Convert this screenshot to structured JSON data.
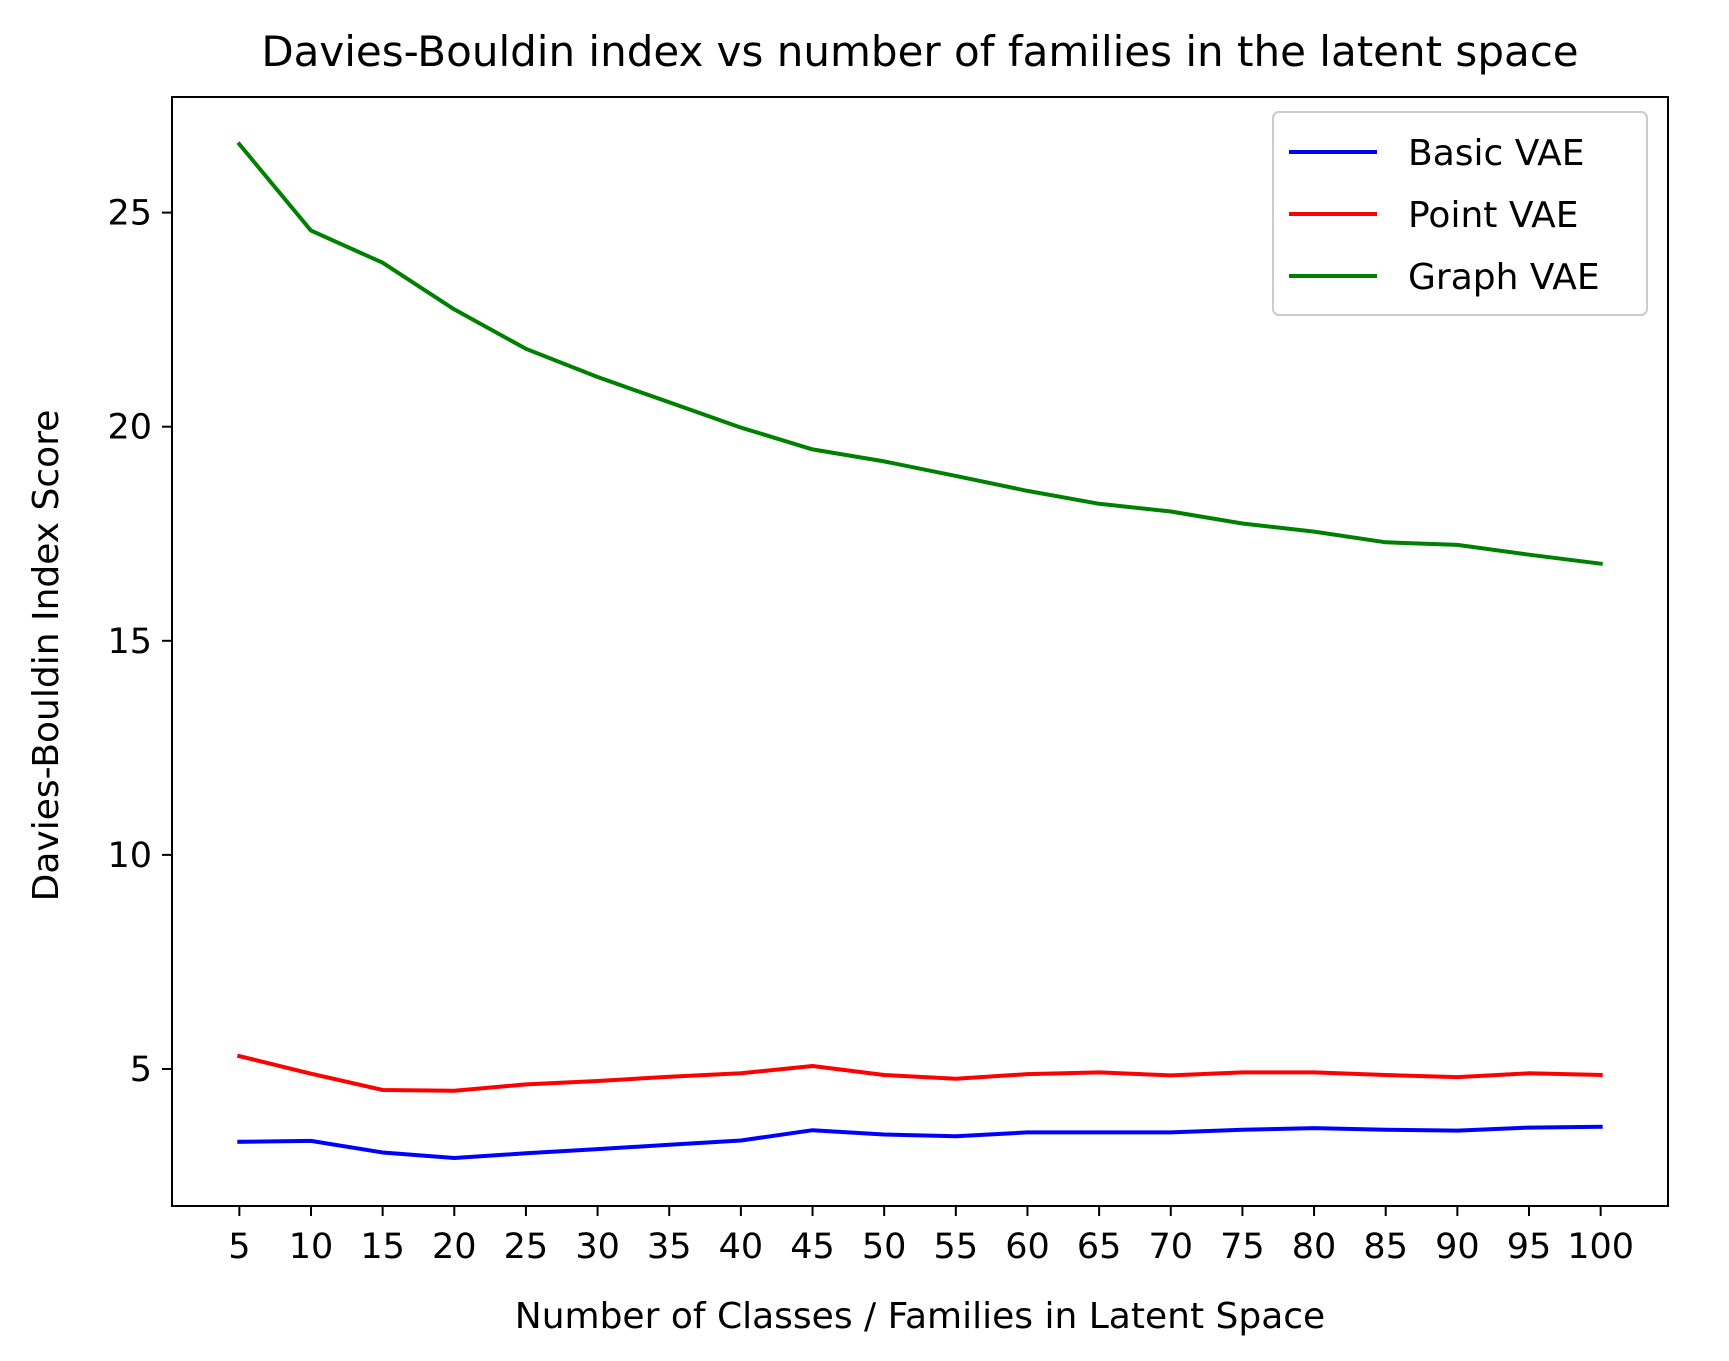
{
  "chart_data": {
    "type": "line",
    "title": "Davies-Bouldin index vs number of families in the latent space",
    "xlabel": "Number of Classes / Families in Latent Space",
    "ylabel": "Davies-Bouldin Index Score",
    "x": [
      5,
      10,
      15,
      20,
      25,
      30,
      35,
      40,
      45,
      50,
      55,
      60,
      65,
      70,
      75,
      80,
      85,
      90,
      95,
      100
    ],
    "x_tick_labels": [
      "5",
      "10",
      "15",
      "20",
      "25",
      "30",
      "35",
      "40",
      "45",
      "50",
      "55",
      "60",
      "65",
      "70",
      "75",
      "80",
      "85",
      "90",
      "95",
      "100"
    ],
    "y_ticks": [
      5,
      10,
      15,
      20,
      25
    ],
    "y_tick_labels": [
      "5",
      "10",
      "15",
      "20",
      "25"
    ],
    "xlim": [
      0.3,
      104.7
    ],
    "ylim": [
      1.8,
      27.7
    ],
    "grid": false,
    "legend_position": "top-right",
    "series": [
      {
        "name": "Basic VAE",
        "color": "#0000ff",
        "values": [
          3.3,
          3.32,
          3.05,
          2.92,
          3.03,
          3.13,
          3.23,
          3.33,
          3.57,
          3.47,
          3.43,
          3.52,
          3.52,
          3.52,
          3.58,
          3.62,
          3.58,
          3.56,
          3.63,
          3.65
        ]
      },
      {
        "name": "Point VAE",
        "color": "#ff0000",
        "values": [
          5.3,
          4.89,
          4.51,
          4.49,
          4.64,
          4.72,
          4.82,
          4.9,
          5.07,
          4.86,
          4.77,
          4.88,
          4.92,
          4.85,
          4.92,
          4.92,
          4.86,
          4.81,
          4.9,
          4.86
        ]
      },
      {
        "name": "Graph VAE",
        "color": "#008000",
        "values": [
          26.6,
          24.58,
          23.83,
          22.74,
          21.82,
          21.16,
          20.57,
          19.98,
          19.47,
          19.19,
          18.85,
          18.5,
          18.2,
          18.02,
          17.74,
          17.55,
          17.3,
          17.24,
          17.01,
          16.8
        ]
      }
    ]
  }
}
